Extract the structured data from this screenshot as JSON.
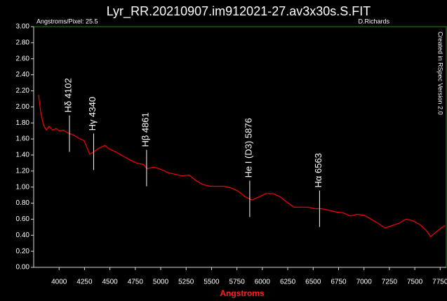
{
  "chart_data": {
    "type": "line",
    "title": "Lyr_RR.20210907.im912021-27.av3x30s.S.FIT",
    "subtitle_left": "Angstroms/Pixel: 25.5",
    "subtitle_right": "D.Richards",
    "side_note": "Created in RSpec Version 2.0",
    "x_label": "Angstroms",
    "color": "#ff0000",
    "x": [
      3798,
      3819,
      3846,
      3874,
      3902,
      3936,
      3970,
      4005,
      4039,
      4094,
      4143,
      4191,
      4246,
      4301,
      4329,
      4384,
      4452,
      4487,
      4556,
      4625,
      4694,
      4762,
      4831,
      4866,
      4935,
      5003,
      5072,
      5141,
      5210,
      5279,
      5348,
      5417,
      5485,
      5554,
      5623,
      5692,
      5761,
      5830,
      5899,
      5968,
      6036,
      6105,
      6174,
      6243,
      6312,
      6381,
      6450,
      6519,
      6587,
      6656,
      6725,
      6794,
      6863,
      6932,
      7001,
      7069,
      7138,
      7207,
      7276,
      7345,
      7414,
      7483,
      7552,
      7620,
      7655,
      7689,
      7758,
      7799
    ],
    "values": [
      2.15,
      1.93,
      1.78,
      1.71,
      1.76,
      1.71,
      1.73,
      1.7,
      1.71,
      1.67,
      1.65,
      1.61,
      1.58,
      1.41,
      1.43,
      1.48,
      1.52,
      1.48,
      1.44,
      1.39,
      1.34,
      1.3,
      1.28,
      1.23,
      1.25,
      1.22,
      1.18,
      1.16,
      1.14,
      1.15,
      1.08,
      1.03,
      1.01,
      1.01,
      1.01,
      0.99,
      0.95,
      0.88,
      0.84,
      0.88,
      0.92,
      0.92,
      0.88,
      0.81,
      0.75,
      0.75,
      0.75,
      0.73,
      0.73,
      0.71,
      0.69,
      0.68,
      0.64,
      0.66,
      0.65,
      0.6,
      0.55,
      0.49,
      0.52,
      0.55,
      0.6,
      0.58,
      0.53,
      0.45,
      0.38,
      0.42,
      0.49,
      0.52
    ],
    "annotations": [
      {
        "text": "Hδ 4102",
        "x": 4102
      },
      {
        "text": "Hγ 4340",
        "x": 4340
      },
      {
        "text": "Hβ 4861",
        "x": 4861
      },
      {
        "text": "He I (D3) 5876",
        "x": 5876
      },
      {
        "text": "Hα 6563",
        "x": 6563
      }
    ],
    "xlim": [
      3750,
      7810
    ],
    "xticks": [
      4000,
      4250,
      4500,
      4750,
      5000,
      5250,
      5500,
      5750,
      6000,
      6250,
      6500,
      6750,
      7000,
      7250,
      7500,
      7750
    ],
    "ylim": [
      0,
      3
    ],
    "yticks": [
      {
        "value": 0,
        "label": "0.00"
      },
      {
        "value": 0.2,
        "label": "0.20"
      },
      {
        "value": 0.4,
        "label": "0.40"
      },
      {
        "value": 0.6,
        "label": "0.60"
      },
      {
        "value": 0.8,
        "label": "0.80"
      },
      {
        "value": 1,
        "label": "1.00"
      },
      {
        "value": 1.2,
        "label": "1.20"
      },
      {
        "value": 1.4,
        "label": "1.40"
      },
      {
        "value": 1.6,
        "label": "1.60"
      },
      {
        "value": 1.8,
        "label": "1.80"
      },
      {
        "value": 2,
        "label": "2.00"
      },
      {
        "value": 2.2,
        "label": "2.20"
      },
      {
        "value": 2.4,
        "label": "2.40"
      },
      {
        "value": 2.6,
        "label": "2.60"
      },
      {
        "value": 2.8,
        "label": "2.80"
      },
      {
        "value": 3,
        "label": "3.00"
      }
    ],
    "grid": false
  }
}
